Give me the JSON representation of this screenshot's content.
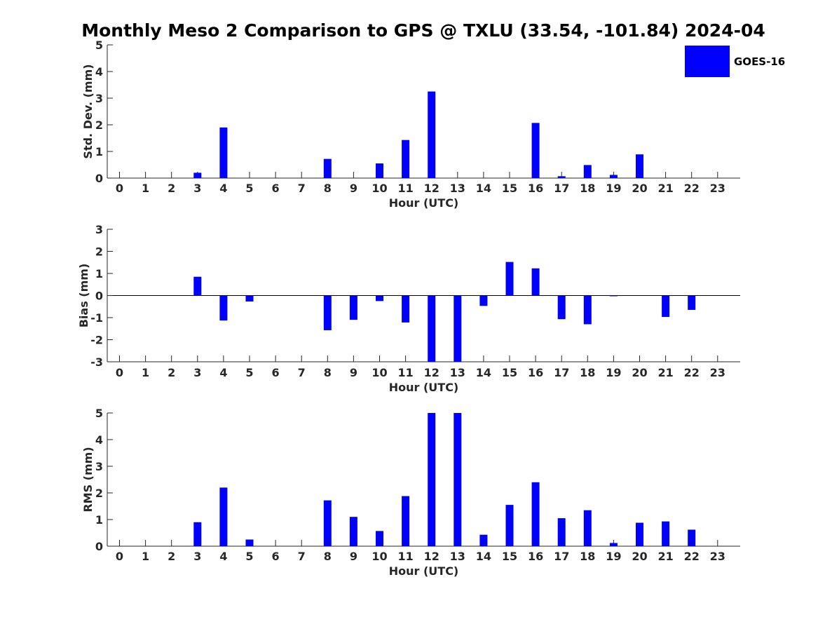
{
  "chart_data": {
    "type": "bar",
    "title": "Monthly Meso 2 Comparison to GPS @ TXLU (33.54, -101.84) 2024-04",
    "legend": {
      "labels": [
        "GOES-16"
      ],
      "placement": "top-right"
    },
    "categories": [
      "0",
      "1",
      "2",
      "3",
      "4",
      "5",
      "6",
      "7",
      "8",
      "9",
      "10",
      "11",
      "12",
      "13",
      "14",
      "15",
      "16",
      "17",
      "18",
      "19",
      "20",
      "21",
      "22",
      "23"
    ],
    "series_color": "#0000ff",
    "panels": [
      {
        "ylabel": "Std. Dev. (mm)",
        "xlabel": "Hour (UTC)",
        "ylim": [
          0,
          5
        ],
        "yticks": [
          0,
          1,
          2,
          3,
          4,
          5
        ],
        "series": [
          {
            "name": "GOES-16",
            "values": [
              0,
              0,
              0,
              0.2,
              1.9,
              0,
              0,
              0,
              0.72,
              0,
              0.55,
              1.43,
              3.25,
              0,
              0,
              0,
              2.07,
              0.07,
              0.49,
              0.12,
              0.89,
              0,
              0,
              0
            ]
          }
        ]
      },
      {
        "ylabel": "Bias (mm)",
        "xlabel": "Hour (UTC)",
        "ylim": [
          -3,
          3
        ],
        "yticks": [
          -3,
          -2,
          -1,
          0,
          1,
          2,
          3
        ],
        "series": [
          {
            "name": "GOES-16",
            "values": [
              0,
              0,
              0,
              0.85,
              -1.13,
              -0.27,
              0,
              0,
              -1.57,
              -1.1,
              -0.25,
              -1.22,
              -3,
              -3,
              -0.47,
              1.52,
              1.23,
              -1.07,
              -1.3,
              -0.03,
              0,
              -0.97,
              -0.65,
              0
            ]
          }
        ]
      },
      {
        "ylabel": "RMS (mm)",
        "xlabel": "Hour (UTC)",
        "ylim": [
          0,
          5
        ],
        "yticks": [
          0,
          1,
          2,
          3,
          4,
          5
        ],
        "series": [
          {
            "name": "GOES-16",
            "values": [
              0,
              0,
              0,
              0.9,
              2.2,
              0.25,
              0,
              0,
              1.72,
              1.1,
              0.57,
              1.88,
              5,
              5,
              0.43,
              1.55,
              2.4,
              1.05,
              1.35,
              0.12,
              0.88,
              0.93,
              0.62,
              0
            ]
          }
        ]
      }
    ],
    "grid": false
  }
}
